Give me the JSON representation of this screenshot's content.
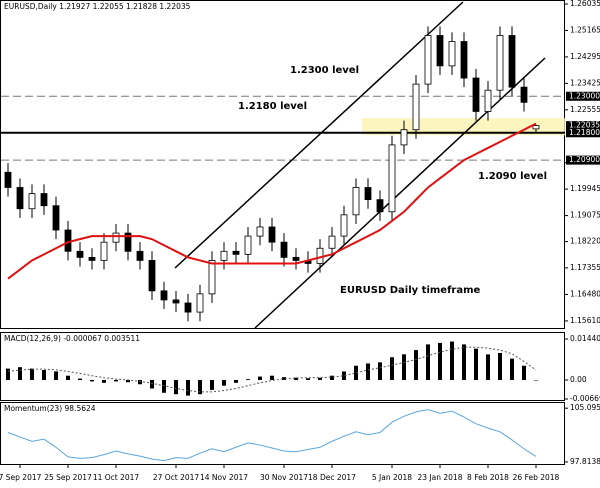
{
  "chart_data": [
    {
      "type": "candlestick",
      "title": "EURUSD,Daily  1.21927 1.22055 1.21828 1.22035",
      "annotations": [
        "1.2300 level",
        "1.2180 level",
        "1.2090 level",
        "EURUSD Daily timeframe"
      ],
      "xticks": [
        {
          "value": 1,
          "label": "7 Sep 2017"
        },
        {
          "value": 5,
          "label": "25 Sep 2017"
        },
        {
          "value": 9,
          "label": "11 Oct 2017"
        },
        {
          "value": 14,
          "label": "27 Oct 2017"
        },
        {
          "value": 18,
          "label": "14 Nov 2017"
        },
        {
          "value": 23,
          "label": "30 Nov 2017"
        },
        {
          "value": 27,
          "label": "18 Dec 2017"
        },
        {
          "value": 32,
          "label": "5 Jan 2018"
        },
        {
          "value": 36,
          "label": "23 Jan 2018"
        },
        {
          "value": 40,
          "label": "8 Feb 2018"
        },
        {
          "value": 44,
          "label": "26 Feb 2018"
        }
      ],
      "open": [
        1.205,
        1.2,
        1.193,
        1.198,
        1.194,
        1.186,
        1.179,
        1.177,
        1.176,
        1.182,
        1.185,
        1.179,
        1.176,
        1.166,
        1.163,
        1.162,
        1.159,
        1.165,
        1.176,
        1.179,
        1.178,
        1.184,
        1.187,
        1.182,
        1.177,
        1.176,
        1.175,
        1.18,
        1.184,
        1.191,
        1.2,
        1.196,
        1.192,
        1.214,
        1.219,
        1.234,
        1.25,
        1.24,
        1.248,
        1.236,
        1.225,
        1.232,
        1.25,
        1.233,
        1.21927
      ],
      "high": [
        1.208,
        1.203,
        1.201,
        1.201,
        1.197,
        1.189,
        1.182,
        1.18,
        1.185,
        1.188,
        1.188,
        1.182,
        1.179,
        1.169,
        1.166,
        1.165,
        1.168,
        1.179,
        1.182,
        1.182,
        1.187,
        1.19,
        1.19,
        1.185,
        1.18,
        1.179,
        1.183,
        1.187,
        1.194,
        1.203,
        1.203,
        1.199,
        1.217,
        1.222,
        1.237,
        1.253,
        1.253,
        1.251,
        1.251,
        1.239,
        1.235,
        1.253,
        1.253,
        1.236,
        1.22055
      ],
      "low": [
        1.197,
        1.19,
        1.19,
        1.191,
        1.183,
        1.176,
        1.174,
        1.173,
        1.173,
        1.179,
        1.176,
        1.173,
        1.163,
        1.16,
        1.159,
        1.156,
        1.156,
        1.162,
        1.173,
        1.175,
        1.175,
        1.181,
        1.179,
        1.174,
        1.173,
        1.172,
        1.172,
        1.177,
        1.181,
        1.188,
        1.193,
        1.189,
        1.189,
        1.211,
        1.216,
        1.231,
        1.237,
        1.237,
        1.233,
        1.222,
        1.222,
        1.229,
        1.23,
        1.225,
        1.21828
      ],
      "close": [
        1.2,
        1.193,
        1.198,
        1.194,
        1.186,
        1.179,
        1.177,
        1.176,
        1.182,
        1.185,
        1.179,
        1.176,
        1.166,
        1.163,
        1.162,
        1.159,
        1.165,
        1.176,
        1.179,
        1.178,
        1.184,
        1.187,
        1.182,
        1.177,
        1.176,
        1.175,
        1.18,
        1.184,
        1.191,
        1.2,
        1.196,
        1.192,
        1.214,
        1.219,
        1.234,
        1.25,
        1.24,
        1.248,
        1.236,
        1.225,
        1.232,
        1.25,
        1.233,
        1.228,
        1.22035
      ],
      "moving_average": {
        "color": "#e01010",
        "values": [
          1.17,
          1.173,
          1.176,
          1.178,
          1.18,
          1.182,
          1.183,
          1.184,
          1.184,
          1.184,
          1.184,
          1.184,
          1.183,
          1.181,
          1.179,
          1.177,
          1.176,
          1.175,
          1.175,
          1.175,
          1.175,
          1.175,
          1.175,
          1.175,
          1.175,
          1.176,
          1.177,
          1.178,
          1.18,
          1.182,
          1.184,
          1.186,
          1.189,
          1.192,
          1.196,
          1.2,
          1.203,
          1.206,
          1.209,
          1.211,
          1.213,
          1.215,
          1.217,
          1.219,
          1.221
        ]
      },
      "ylim": [
        1.15377,
        1.26167
      ],
      "yticks": [
        {
          "value": 1.26035,
          "label": "1.26035"
        },
        {
          "value": 1.25165,
          "label": "1.25165"
        },
        {
          "value": 1.24295,
          "label": "1.24295"
        },
        {
          "value": 1.23425,
          "label": "1.23425"
        },
        {
          "value": 1.22555,
          "label": "1.22555"
        },
        {
          "value": 1.20815,
          "label": "1.20815"
        },
        {
          "value": 1.19945,
          "label": "1.19945"
        },
        {
          "value": 1.19075,
          "label": "1.19075"
        },
        {
          "value": 1.1822,
          "label": "1.18220"
        },
        {
          "value": 1.17355,
          "label": "1.17355"
        },
        {
          "value": 1.1648,
          "label": "1.16480"
        },
        {
          "value": 1.1561,
          "label": "1.15610"
        }
      ],
      "levels": [
        {
          "value": 1.23,
          "label": "1.23000",
          "style": "dashed"
        },
        {
          "value": 1.22035,
          "label": "1.22035",
          "style": "none"
        },
        {
          "value": 1.218,
          "label": "1.21800",
          "style": "solid"
        },
        {
          "value": 1.209,
          "label": "1.20900",
          "style": "dashed"
        }
      ],
      "highlight_band": [
        1.2172,
        1.2228
      ]
    },
    {
      "type": "macd",
      "title": "MACD(12,26,9) -0.000067 0.003511",
      "values": [
        0.004,
        0.0045,
        0.004,
        0.0035,
        0.003,
        0.0015,
        0.0005,
        -0.0005,
        -0.001,
        -0.0005,
        -0.0008,
        -0.0015,
        -0.003,
        -0.0045,
        -0.005,
        -0.0055,
        -0.005,
        -0.0035,
        -0.002,
        -0.001,
        0.0003,
        0.0012,
        0.0015,
        0.001,
        0.0008,
        0.0006,
        0.0008,
        0.0015,
        0.003,
        0.005,
        0.0058,
        0.0062,
        0.008,
        0.009,
        0.0105,
        0.0125,
        0.013,
        0.0135,
        0.0125,
        0.011,
        0.009,
        0.0095,
        0.0075,
        0.005,
        -6.7e-05
      ],
      "signal": [
        0.003,
        0.0035,
        0.0038,
        0.0038,
        0.0036,
        0.003,
        0.0023,
        0.0015,
        0.0008,
        0.0003,
        0,
        -0.0005,
        -0.0012,
        -0.002,
        -0.003,
        -0.0037,
        -0.0042,
        -0.0042,
        -0.0037,
        -0.003,
        -0.002,
        -0.001,
        -0.0002,
        0.0004,
        0.0007,
        0.0008,
        0.0008,
        0.001,
        0.0015,
        0.0025,
        0.0035,
        0.0043,
        0.0052,
        0.0062,
        0.0072,
        0.0085,
        0.0098,
        0.0108,
        0.0115,
        0.0115,
        0.0112,
        0.0105,
        0.0092,
        0.0065,
        0.003511
      ],
      "ylim": [
        -0.00704,
        0.01686
      ],
      "yticks": [
        0.014405,
        {
          "value": 0,
          "label": "0.00"
        },
        -0.00669
      ]
    },
    {
      "type": "momentum",
      "title": "Momentum(23) 98.5624",
      "color": "#5aa7de",
      "values": [
        101.8,
        101.2,
        100.6,
        100.9,
        99.8,
        98.5,
        98.3,
        98.4,
        98.8,
        99.3,
        98.9,
        98.6,
        98.2,
        98.0,
        98.4,
        98.3,
        99.0,
        99.6,
        99.2,
        99.8,
        100.4,
        100.1,
        99.7,
        99.3,
        99.2,
        99.5,
        99.8,
        100.6,
        101.3,
        101.9,
        101.5,
        101.8,
        103.2,
        104.0,
        104.6,
        104.9,
        104.4,
        104.7,
        103.9,
        103.0,
        102.4,
        101.9,
        100.8,
        99.6,
        98.5624
      ],
      "ylim": [
        97.534,
        105.936
      ],
      "yticks": [
        105.0957,
        97.8138
      ]
    }
  ]
}
